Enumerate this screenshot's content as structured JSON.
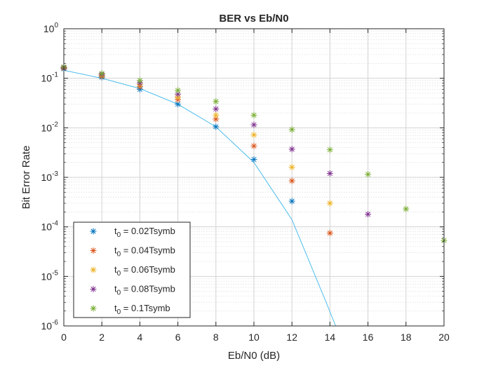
{
  "chart_data": {
    "type": "scatter",
    "title": "BER vs Eb/N0",
    "xlabel": "Eb/N0 (dB)",
    "ylabel": "Bit Error Rate",
    "xlim": [
      0,
      20
    ],
    "ylim": [
      1e-06,
      1
    ],
    "yscale": "log",
    "grid": true,
    "minor_grid": true,
    "legend_placement": "bottom-left",
    "xticks": [
      "0",
      "2",
      "4",
      "6",
      "8",
      "10",
      "12",
      "14",
      "16",
      "18",
      "20"
    ],
    "yticks": [
      {
        "value": 1,
        "base": "10",
        "exp": "0"
      },
      {
        "value": 0.1,
        "base": "10",
        "exp": "-1"
      },
      {
        "value": 0.01,
        "base": "10",
        "exp": "-2"
      },
      {
        "value": 0.001,
        "base": "10",
        "exp": "-3"
      },
      {
        "value": 0.0001,
        "base": "10",
        "exp": "-4"
      },
      {
        "value": 1e-05,
        "base": "10",
        "exp": "-5"
      },
      {
        "value": 1e-06,
        "base": "10",
        "exp": "-6"
      }
    ],
    "theory_curve": {
      "color": "#4DBEEE",
      "x": [
        0,
        2,
        4,
        6,
        8,
        10,
        12,
        13.8,
        14.3
      ],
      "y": [
        0.145,
        0.1,
        0.062,
        0.03,
        0.0105,
        0.002,
        0.00014,
        3e-06,
        1e-06
      ]
    },
    "series": [
      {
        "label_prefix": "t",
        "label_sub": "0",
        "label_rest": " = 0.02Tsymb",
        "color": "#0072BD",
        "x": [
          0,
          2,
          4,
          6,
          8,
          10,
          12
        ],
        "y": [
          0.155,
          0.105,
          0.06,
          0.03,
          0.0105,
          0.0023,
          0.00033
        ]
      },
      {
        "label_prefix": "t",
        "label_sub": "0",
        "label_rest": " = 0.04Tsymb",
        "color": "#D95319",
        "x": [
          0,
          2,
          4,
          6,
          8,
          10,
          12,
          14
        ],
        "y": [
          0.16,
          0.11,
          0.068,
          0.037,
          0.015,
          0.0043,
          0.00085,
          7.5e-05
        ]
      },
      {
        "label_prefix": "t",
        "label_sub": "0",
        "label_rest": " = 0.06Tsymb",
        "color": "#EDB120",
        "x": [
          0,
          2,
          4,
          6,
          8,
          10,
          12,
          14
        ],
        "y": [
          0.165,
          0.115,
          0.075,
          0.042,
          0.018,
          0.0072,
          0.0016,
          0.0003
        ]
      },
      {
        "label_prefix": "t",
        "label_sub": "0",
        "label_rest": " = 0.08Tsymb",
        "color": "#7E2F8E",
        "x": [
          0,
          2,
          4,
          6,
          8,
          10,
          12,
          14,
          16
        ],
        "y": [
          0.165,
          0.12,
          0.08,
          0.048,
          0.024,
          0.0115,
          0.0037,
          0.0012,
          0.00018
        ]
      },
      {
        "label_prefix": "t",
        "label_sub": "0",
        "label_rest": " = 0.1Tsymb",
        "color": "#77AC30",
        "x": [
          0,
          2,
          4,
          6,
          8,
          10,
          12,
          14,
          16,
          18,
          20
        ],
        "y": [
          0.17,
          0.125,
          0.09,
          0.057,
          0.034,
          0.018,
          0.0092,
          0.0036,
          0.00115,
          0.00023,
          5.3e-05
        ]
      }
    ]
  }
}
